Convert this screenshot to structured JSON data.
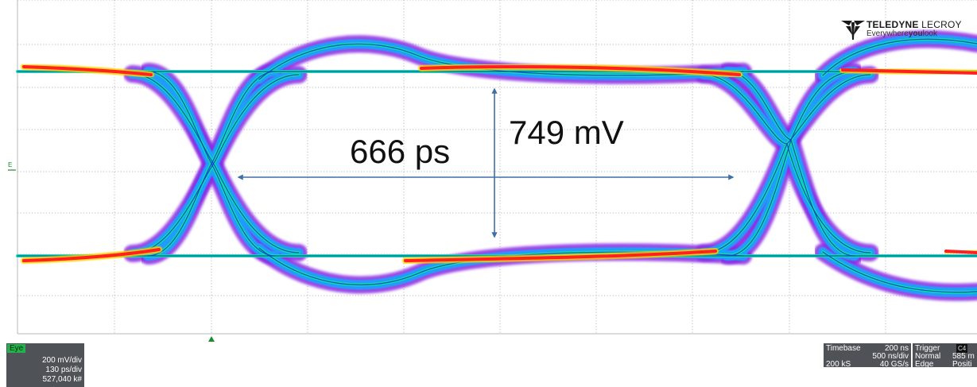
{
  "annotations": {
    "horizontal_label": "666 ps",
    "vertical_label": "749 mV"
  },
  "logo": {
    "brand_bold": "TELEDYNE",
    "brand_light": "LECROY",
    "tagline_pre": "Everywhere",
    "tagline_bold": "you",
    "tagline_post": "look"
  },
  "channel_marker": "E",
  "eye_panel": {
    "tag": "Eye",
    "vertical_scale": "200 mV/div",
    "horizontal_scale": "130 ps/div",
    "count": "527,040 k#"
  },
  "timebase_panel": {
    "label": "Timebase",
    "timebase_value": "200 ns",
    "time_per_div": "500 ns/div",
    "samples": "200 kS",
    "sample_rate": "40 GS/s"
  },
  "trigger_panel": {
    "label": "Trigger",
    "source_badge": "C4",
    "level": "585 m",
    "mode": "Normal",
    "type": "Edge",
    "slope": "Positi"
  },
  "colors": {
    "grid_dots": "#b9b9b9",
    "arrow": "#3f6fa6",
    "eye_outer": "#8a2be2",
    "eye_mid": "#1ea0ff",
    "eye_inner": "#10e0a0",
    "eye_hot": "#ff2020",
    "panel_bg": "#4f5257",
    "channel_green": "#22b14c"
  }
}
